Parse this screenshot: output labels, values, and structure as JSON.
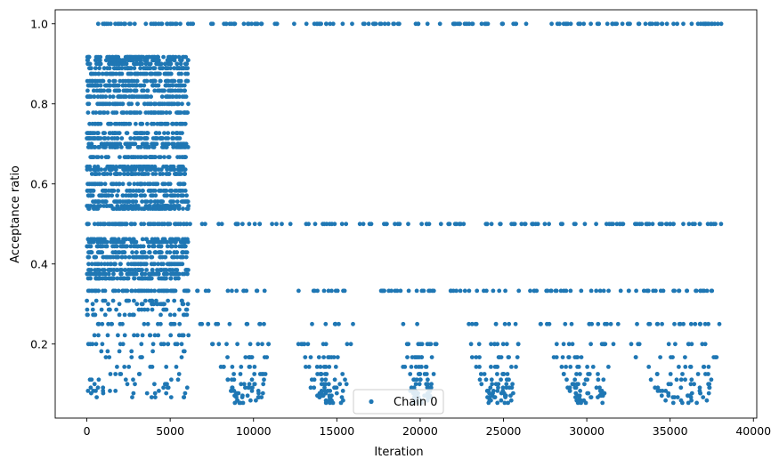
{
  "chart_data": {
    "type": "scatter",
    "title": "",
    "xlabel": "Iteration",
    "ylabel": "Acceptance ratio",
    "xlim": [
      -1900,
      40200
    ],
    "ylim": [
      0.015,
      1.035
    ],
    "x_ticks": [
      0,
      5000,
      10000,
      15000,
      20000,
      25000,
      30000,
      35000,
      40000
    ],
    "x_tick_labels": [
      "0",
      "5000",
      "10000",
      "15000",
      "20000",
      "25000",
      "30000",
      "35000",
      "40000"
    ],
    "y_ticks": [
      0.2,
      0.4,
      0.6,
      0.8,
      1.0
    ],
    "y_tick_labels": [
      "0.2",
      "0.4",
      "0.6",
      "0.8",
      "1.0"
    ],
    "grid": false,
    "legend": {
      "position": "lower-center",
      "entries": [
        "Chain 0"
      ]
    },
    "series": [
      {
        "name": "Chain 0",
        "color": "#1f77b4",
        "marker": "circle",
        "x_range": [
          0,
          38200
        ],
        "n_iterations": 38200,
        "phases": [
          {
            "x_start": 0,
            "x_end": 6100,
            "levels": [
              1.0,
              0.917,
              0.909,
              0.9,
              0.889,
              0.875,
              0.857,
              0.846,
              0.833,
              0.818,
              0.8,
              0.778,
              0.75,
              0.727,
              0.714,
              0.7,
              0.692,
              0.667,
              0.643,
              0.636,
              0.625,
              0.6,
              0.583,
              0.571,
              0.556,
              0.545,
              0.538,
              0.5,
              0.462,
              0.455,
              0.444,
              0.429,
              0.417,
              0.4,
              0.385,
              0.375,
              0.364,
              0.333,
              0.308,
              0.3,
              0.286,
              0.273,
              0.25,
              0.222,
              0.2,
              0.182,
              0.167,
              0.143,
              0.125,
              0.111,
              0.1,
              0.091,
              0.083,
              0.077,
              0.067
            ]
          },
          {
            "x_start": 6100,
            "x_end": 38200,
            "levels": [
              1.0,
              0.5,
              0.333,
              0.25,
              0.2,
              0.167,
              0.143,
              0.125,
              0.111,
              0.1,
              0.091,
              0.083,
              0.077,
              0.071,
              0.067,
              0.059,
              0.053
            ]
          }
        ]
      }
    ]
  }
}
